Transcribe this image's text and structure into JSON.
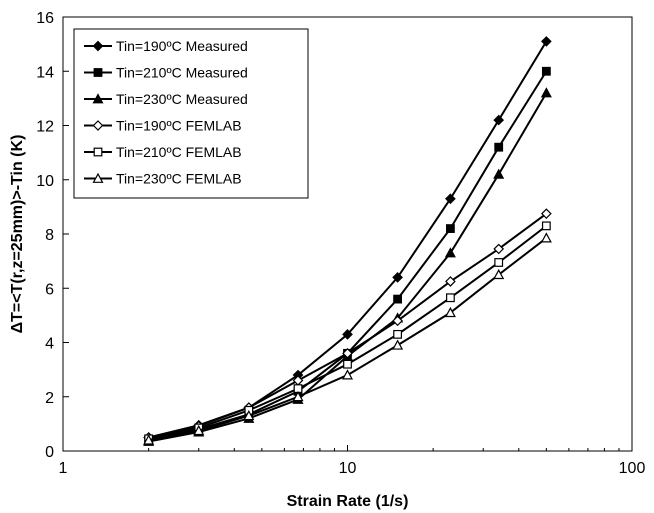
{
  "chart_data": {
    "type": "line",
    "xlabel": "Strain Rate (1/s)",
    "ylabel": "ΔT=<T(r,z=25mm)>-Tin (K)",
    "x_scale": "log",
    "xlim": [
      1,
      100
    ],
    "ylim": [
      0,
      16
    ],
    "x_ticks": [
      1,
      10,
      100
    ],
    "y_ticks": [
      0,
      2,
      4,
      6,
      8,
      10,
      12,
      14,
      16
    ],
    "x_tick_labels": [
      "1",
      "10",
      "100"
    ],
    "y_tick_labels": [
      "0",
      "2",
      "4",
      "6",
      "8",
      "10",
      "12",
      "14",
      "16"
    ],
    "grid": false,
    "legend_position": "top-left",
    "x": [
      2,
      3,
      4.5,
      6.7,
      10,
      15,
      23,
      34,
      50
    ],
    "series": [
      {
        "name": "Tin=190ºC Measured",
        "marker": "diamond-filled",
        "values": [
          0.5,
          0.95,
          1.6,
          2.8,
          4.3,
          6.4,
          9.3,
          12.2,
          15.1
        ]
      },
      {
        "name": "Tin=210ºC Measured",
        "marker": "square-filled",
        "values": [
          0.4,
          0.8,
          1.35,
          2.2,
          3.6,
          5.6,
          8.2,
          11.2,
          14.0
        ]
      },
      {
        "name": "Tin=230ºC Measured",
        "marker": "triangle-filled",
        "values": [
          0.35,
          0.7,
          1.2,
          1.9,
          3.5,
          4.9,
          7.3,
          10.2,
          13.2
        ]
      },
      {
        "name": "Tin=190ºC FEMLAB",
        "marker": "diamond-open",
        "values": [
          0.5,
          0.92,
          1.6,
          2.6,
          3.6,
          4.8,
          6.25,
          7.45,
          8.75
        ]
      },
      {
        "name": "Tin=210ºC FEMLAB",
        "marker": "square-open",
        "values": [
          0.45,
          0.85,
          1.5,
          2.3,
          3.2,
          4.3,
          5.65,
          6.95,
          8.3
        ]
      },
      {
        "name": "Tin=230ºC FEMLAB",
        "marker": "triangle-open",
        "values": [
          0.4,
          0.75,
          1.3,
          2.0,
          2.8,
          3.9,
          5.1,
          6.5,
          7.85
        ]
      }
    ]
  }
}
